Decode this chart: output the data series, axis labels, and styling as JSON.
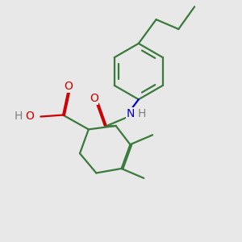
{
  "bg_color": "#e8e8e8",
  "bond_color": "#3a7a3a",
  "o_color": "#cc0000",
  "n_color": "#0000cc",
  "h_color": "#808080",
  "line_width": 1.6,
  "double_sep": 0.018,
  "font_size": 10,
  "fig_size": [
    3.0,
    3.0
  ],
  "dpi": 100,
  "xlim": [
    0,
    3.0
  ],
  "ylim": [
    0,
    3.0
  ]
}
